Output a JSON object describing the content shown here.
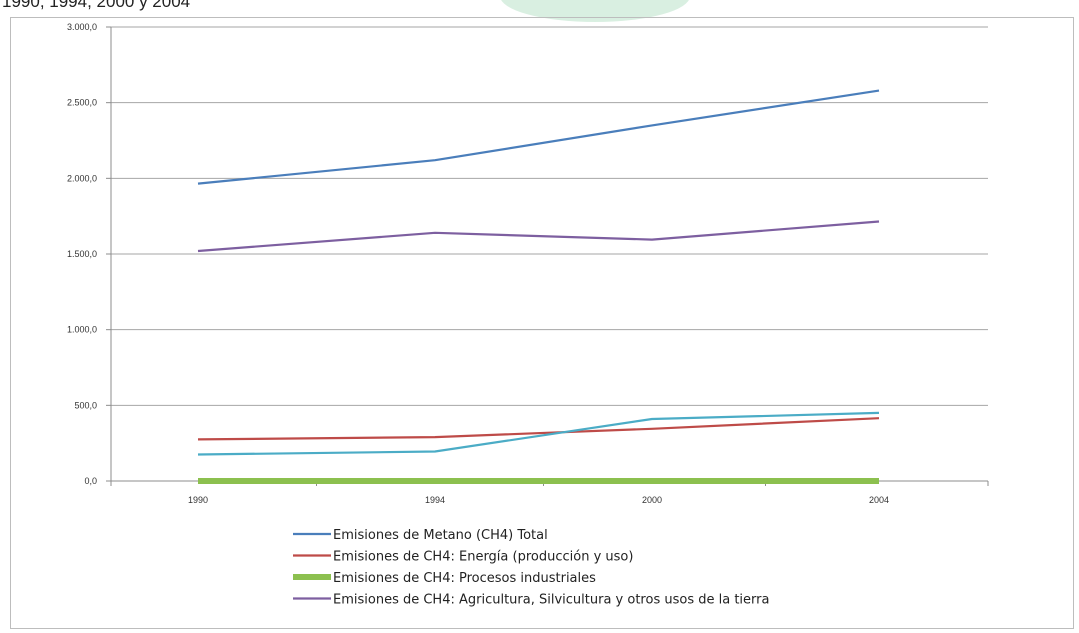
{
  "caption": "1990, 1994, 2000 y 2004",
  "chart_data": {
    "type": "line",
    "title": "",
    "xlabel": "",
    "ylabel": "",
    "categories": [
      "1990",
      "1994",
      "2000",
      "2004"
    ],
    "ylim": [
      0,
      3000
    ],
    "yticks": [
      "0,0",
      "500,0",
      "1.000,0",
      "1.500,0",
      "2.000,0",
      "2.500,0",
      "3.000,0"
    ],
    "grid": true,
    "legend_position": "bottom",
    "series": [
      {
        "name": "Emisiones de Metano (CH4) Total",
        "color": "#4a7ebb",
        "values": [
          1965,
          2120,
          2350,
          2580
        ],
        "show_in_legend": true
      },
      {
        "name": "Emisiones de CH4: Energía (producción y uso)",
        "color": "#be4b48",
        "values": [
          275,
          290,
          345,
          415
        ],
        "show_in_legend": true
      },
      {
        "name": "Emisiones de CH4: Procesos industriales",
        "color": "#8cc04f",
        "values": [
          0,
          0,
          0,
          0
        ],
        "show_in_legend": true,
        "thick": true
      },
      {
        "name": "Emisiones de CH4: Agricultura, Silvicultura y otros usos de la tierra",
        "color": "#7d5fa0",
        "values": [
          1520,
          1640,
          1595,
          1715
        ],
        "show_in_legend": true
      },
      {
        "name": "",
        "color": "#4bacc6",
        "values": [
          175,
          195,
          410,
          450
        ],
        "show_in_legend": false
      }
    ]
  }
}
